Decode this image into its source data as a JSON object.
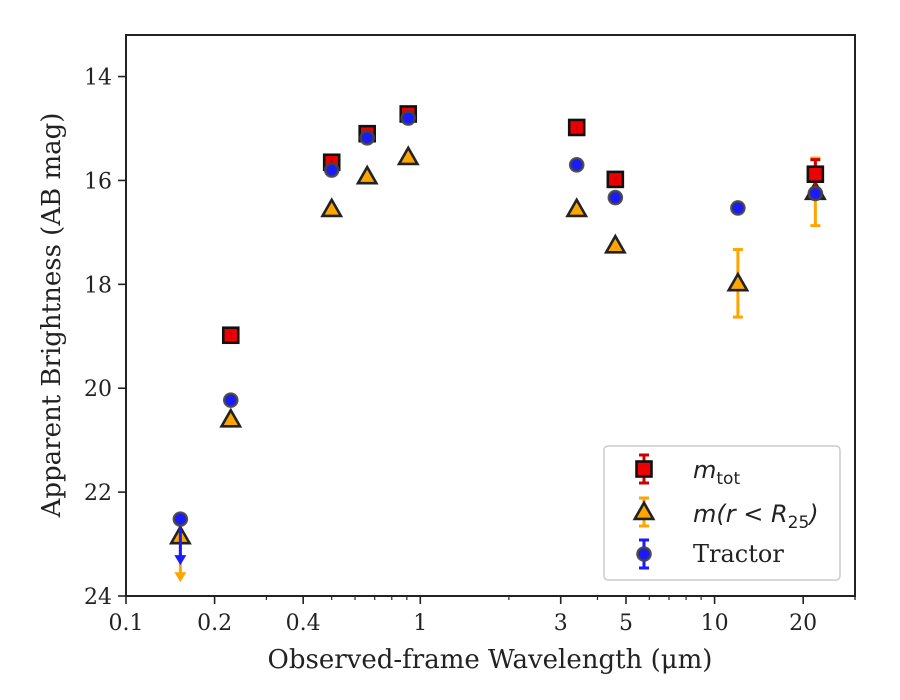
{
  "chart_data": {
    "type": "scatter",
    "title": "",
    "xlabel": "Observed-frame Wavelength (μm)",
    "ylabel": "Apparent Brightness (AB mag)",
    "x_scale": "log",
    "xlim": [
      0.1,
      30
    ],
    "ylim": [
      24,
      13.2
    ],
    "y_inverted": true,
    "x_ticks": [
      0.1,
      0.2,
      0.4,
      1,
      3,
      5,
      10,
      20
    ],
    "x_tick_labels": [
      "0.1",
      "0.2",
      "0.4",
      "1",
      "3",
      "5",
      "10",
      "20"
    ],
    "y_ticks": [
      14,
      16,
      18,
      20,
      22,
      24
    ],
    "y_tick_labels": [
      "14",
      "16",
      "18",
      "20",
      "22",
      "24"
    ],
    "grid": false,
    "legend_position": "lower-right",
    "series": [
      {
        "name": "m_tot",
        "legend_main": "m",
        "legend_sub": "tot",
        "marker": "square",
        "color": "#ee0000",
        "edge_color": "#111111",
        "error_color": "#cc0000",
        "points": [
          {
            "x": 0.227,
            "y": 18.98
          },
          {
            "x": 0.5,
            "y": 15.65
          },
          {
            "x": 0.66,
            "y": 15.1
          },
          {
            "x": 0.91,
            "y": 14.72
          },
          {
            "x": 3.4,
            "y": 14.98
          },
          {
            "x": 4.6,
            "y": 15.98
          },
          {
            "x": 22,
            "y": 15.88,
            "yerr": 0.28
          }
        ]
      },
      {
        "name": "m(r < R25)",
        "legend_main": "m(r < R",
        "legend_sub": "25",
        "legend_end": ")",
        "marker": "triangle",
        "color": "#ffa500",
        "edge_color": "#222222",
        "error_color": "#ffa500",
        "points": [
          {
            "x": 0.153,
            "y": 22.85,
            "upper_limit": true
          },
          {
            "x": 0.227,
            "y": 20.6
          },
          {
            "x": 0.5,
            "y": 16.55
          },
          {
            "x": 0.66,
            "y": 15.92
          },
          {
            "x": 0.91,
            "y": 15.55
          },
          {
            "x": 3.4,
            "y": 16.55
          },
          {
            "x": 4.6,
            "y": 17.25
          },
          {
            "x": 12,
            "y": 17.98,
            "yerr": 0.65
          },
          {
            "x": 22,
            "y": 16.22,
            "yerr": 0.65
          }
        ]
      },
      {
        "name": "Tractor",
        "legend_main": "Tractor",
        "marker": "circle",
        "color": "#1a1aff",
        "edge_color": "#444444",
        "error_color": "#1a1aff",
        "points": [
          {
            "x": 0.153,
            "y": 22.52,
            "upper_limit": true
          },
          {
            "x": 0.227,
            "y": 20.23
          },
          {
            "x": 0.5,
            "y": 15.8
          },
          {
            "x": 0.66,
            "y": 15.18
          },
          {
            "x": 0.91,
            "y": 14.8
          },
          {
            "x": 3.4,
            "y": 15.7
          },
          {
            "x": 4.6,
            "y": 16.33
          },
          {
            "x": 12,
            "y": 16.53
          },
          {
            "x": 22,
            "y": 16.25
          }
        ]
      }
    ]
  }
}
